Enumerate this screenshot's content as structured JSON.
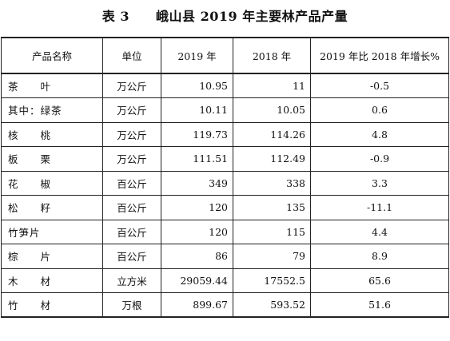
{
  "title": "表 3　　峨山县 2019 年主要林产品产量",
  "table": {
    "headers": [
      "产品名称",
      "单位",
      "2019 年",
      "2018 年",
      "2019 年比 2018 年增长%"
    ],
    "rows": [
      {
        "name": "茶　　叶",
        "unit": "万公斤",
        "y2019": "10.95",
        "y2018": "11",
        "growth": "-0.5"
      },
      {
        "name": "其中：绿茶",
        "unit": "万公斤",
        "y2019": "10.11",
        "y2018": "10.05",
        "growth": "0.6"
      },
      {
        "name": "核　　桃",
        "unit": "万公斤",
        "y2019": "119.73",
        "y2018": "114.26",
        "growth": "4.8"
      },
      {
        "name": "板　　栗",
        "unit": "万公斤",
        "y2019": "111.51",
        "y2018": "112.49",
        "growth": "-0.9"
      },
      {
        "name": "花　　椒",
        "unit": "百公斤",
        "y2019": "349",
        "y2018": "338",
        "growth": "3.3"
      },
      {
        "name": "松　　籽",
        "unit": "百公斤",
        "y2019": "120",
        "y2018": "135",
        "growth": "-11.1"
      },
      {
        "name": "竹笋片",
        "unit": "百公斤",
        "y2019": "120",
        "y2018": "115",
        "growth": "4.4"
      },
      {
        "name": "棕　　片",
        "unit": "百公斤",
        "y2019": "86",
        "y2018": "79",
        "growth": "8.9"
      },
      {
        "name": "木　　材",
        "unit": "立方米",
        "y2019": "29059.44",
        "y2018": "17552.5",
        "growth": "65.6"
      },
      {
        "name": "竹　　材",
        "unit": "万根",
        "y2019": "899.67",
        "y2018": "593.52",
        "growth": "51.6"
      }
    ]
  }
}
